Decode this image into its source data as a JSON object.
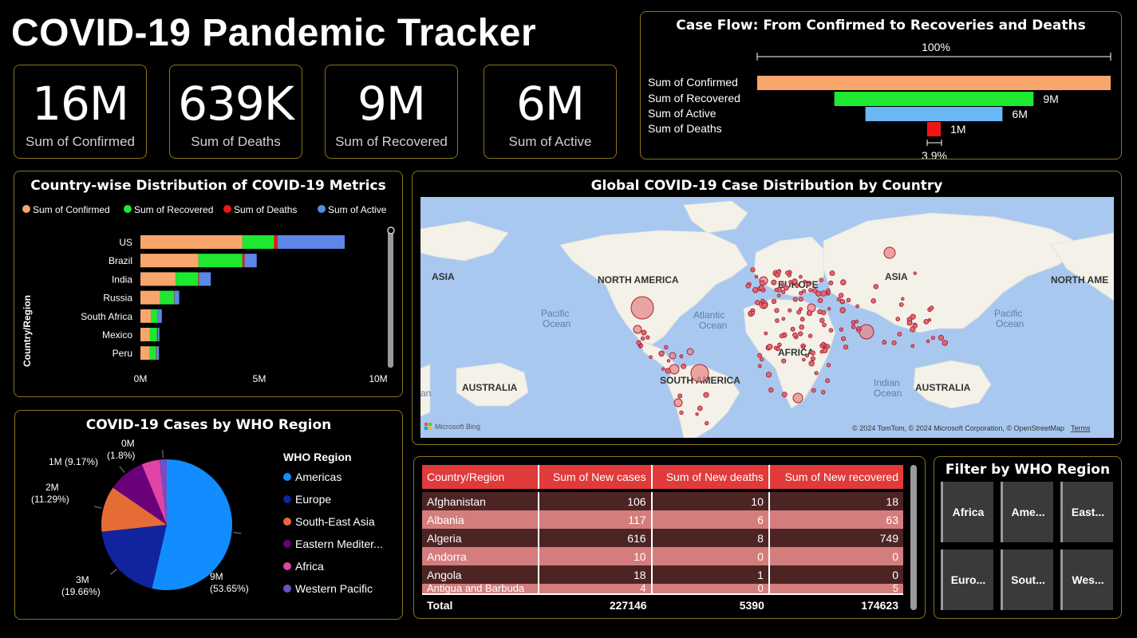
{
  "title": "COVID-19 Pandemic Tracker",
  "kpis": [
    {
      "value": "16M",
      "label": "Sum of Confirmed"
    },
    {
      "value": "639K",
      "label": "Sum of Deaths"
    },
    {
      "value": "9M",
      "label": "Sum of Recovered"
    },
    {
      "value": "6M",
      "label": "Sum of Active"
    }
  ],
  "colors": {
    "confirmed": "#f9a66c",
    "recovered": "#1ee82f",
    "deaths": "#ef1515",
    "active": "#5c87e6",
    "active_funnel": "#6ab7f5",
    "border": "#8a7420",
    "header_red": "#e03a3a"
  },
  "funnel": {
    "title": "Case Flow: From Confirmed to Recoveries and Deaths",
    "top_label": "100%",
    "bottom_label": "3.9%",
    "chart_data": {
      "type": "bar",
      "categories": [
        "Sum of Confirmed",
        "Sum of Recovered",
        "Sum of Active",
        "Sum of Deaths"
      ],
      "values": [
        16.5,
        9.3,
        6.4,
        0.64
      ],
      "value_labels": [
        "",
        "9M",
        "6M",
        "1M"
      ],
      "unit": "M"
    }
  },
  "country_chart": {
    "title": "Country-wise Distribution of COVID-19 Metrics",
    "ylabel": "Country/Region",
    "legend": [
      "Sum of Confirmed",
      "Sum of Recovered",
      "Sum of Deaths",
      "Sum of Active"
    ],
    "chart_data": {
      "type": "bar",
      "stacked": true,
      "orientation": "horizontal",
      "categories": [
        "US",
        "Brazil",
        "India",
        "Russia",
        "South Africa",
        "Mexico",
        "Peru"
      ],
      "series": [
        {
          "name": "Sum of Confirmed",
          "values": [
            4.29,
            2.44,
            1.48,
            0.82,
            0.45,
            0.4,
            0.39
          ]
        },
        {
          "name": "Sum of Recovered",
          "values": [
            1.33,
            1.85,
            0.95,
            0.6,
            0.27,
            0.3,
            0.27
          ]
        },
        {
          "name": "Sum of Deaths",
          "values": [
            0.15,
            0.09,
            0.03,
            0.01,
            0.01,
            0.04,
            0.02
          ]
        },
        {
          "name": "Sum of Active",
          "values": [
            2.82,
            0.51,
            0.5,
            0.2,
            0.17,
            0.06,
            0.1
          ]
        }
      ],
      "xlim": [
        0,
        10
      ],
      "xticks": [
        "0M",
        "5M",
        "10M"
      ]
    }
  },
  "map": {
    "title": "Global COVID-19 Case Distribution by Country",
    "labels": {
      "asia_left": "ASIA",
      "north_america": "NORTH AMERICA",
      "europe": "EUROPE",
      "asia": "ASIA",
      "north_america_right": "NORTH AME",
      "pacific_left": "Pacific",
      "ocean_left": "Ocean",
      "atlantic": "Atlantic",
      "ocean_atl": "Ocean",
      "pacific_right": "Pacific",
      "ocean_right": "Ocean",
      "africa": "AFRICA",
      "south_america": "SOUTH AMERICA",
      "australia_left": "AUSTRALIA",
      "australia": "AUSTRALIA",
      "indian": "Indian",
      "ocean_ind": "Ocean",
      "an": "an"
    },
    "bing": "Microsoft Bing",
    "copyright": "© 2024 TomTom, © 2024 Microsoft Corporation, © OpenStreetMap",
    "terms": "Terms"
  },
  "pie": {
    "title": "COVID-19 Cases by WHO Region",
    "legend_title": "WHO Region",
    "chart_data": {
      "type": "pie",
      "categories": [
        "Americas",
        "Europe",
        "South-East Asia",
        "Eastern Mediter...",
        "Africa",
        "Western Pacific"
      ],
      "values": [
        53.65,
        19.66,
        11.29,
        9.17,
        4.43,
        1.8
      ],
      "colors": [
        "#118dff",
        "#12239e",
        "#e66c37",
        "#6b007b",
        "#e044a7",
        "#744ec2"
      ],
      "labels": [
        "9M (53.65%)",
        "3M (19.66%)",
        "2M (11.29%)",
        "1M (9.17%)",
        "",
        "0M (1.8%)"
      ]
    }
  },
  "table": {
    "headers": [
      "Country/Region",
      "Sum of New cases",
      "Sum of New deaths",
      "Sum of New recovered"
    ],
    "rows": [
      [
        "Afghanistan",
        "106",
        "10",
        "18"
      ],
      [
        "Albania",
        "117",
        "6",
        "63"
      ],
      [
        "Algeria",
        "616",
        "8",
        "749"
      ],
      [
        "Andorra",
        "10",
        "0",
        "0"
      ],
      [
        "Angola",
        "18",
        "1",
        "0"
      ],
      [
        "Antigua and Barbuda",
        "4",
        "0",
        "5"
      ]
    ],
    "total": [
      "Total",
      "227146",
      "5390",
      "174623"
    ]
  },
  "filter": {
    "title": "Filter by WHO Region",
    "buttons": [
      "Africa",
      "Ame...",
      "East...",
      "Euro...",
      "Sout...",
      "Wes..."
    ]
  }
}
